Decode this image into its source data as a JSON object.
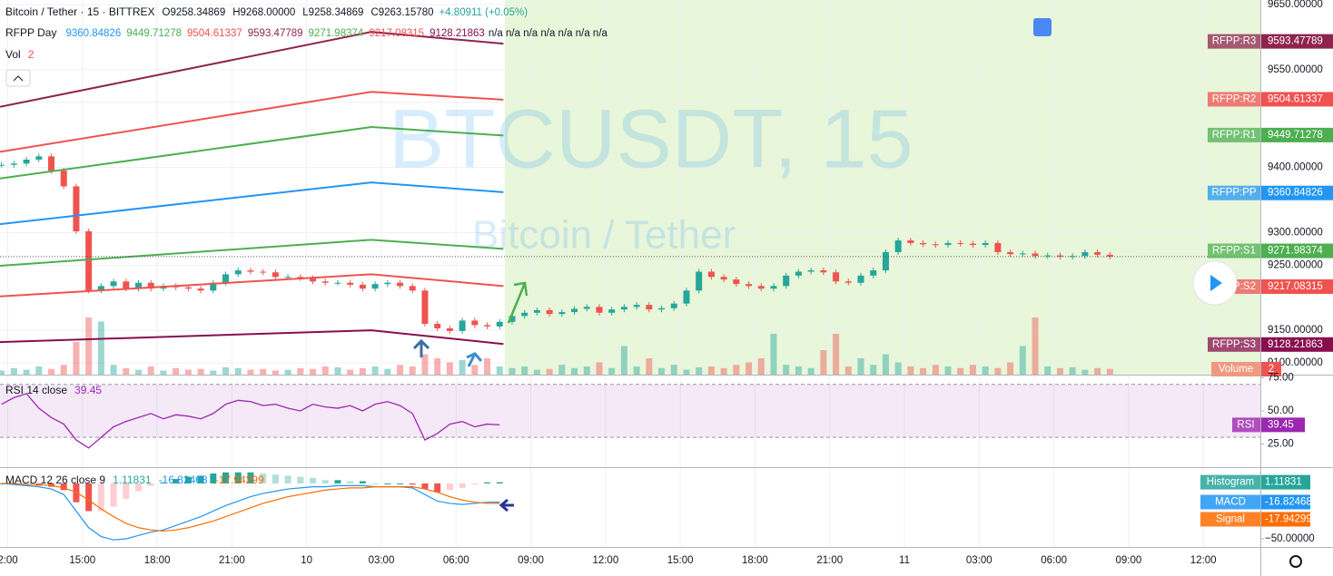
{
  "chart_data": [
    {
      "type": "candlestick",
      "title": "Bitcoin / Tether · 15 · BITTREX",
      "ohlc": [
        "O9258.34869",
        "H9268.00000",
        "L9258.34869",
        "C9263.15780"
      ],
      "change": "+4.80911 (+0.05%)",
      "indicator_name": "RFPP Day",
      "na_text": "n/a n/a n/a n/a n/a n/a n/a",
      "volume_title": "Vol",
      "volume_axis_label": "Volume",
      "volume_value": 2,
      "watermark_symbol": "BTCUSDT, 15",
      "watermark_name": "Bitcoin / Tether",
      "up_color": "#26a69a",
      "down_color": "#ef5350",
      "xlim": [
        -0.31,
        50.29
      ],
      "xticks": [
        {
          "value": 0,
          "label": "2:00"
        },
        {
          "value": 3,
          "label": "15:00"
        },
        {
          "value": 6,
          "label": "18:00"
        },
        {
          "value": 9,
          "label": "21:00"
        },
        {
          "value": 12,
          "label": "10"
        },
        {
          "value": 15,
          "label": "03:00"
        },
        {
          "value": 18,
          "label": "06:00"
        },
        {
          "value": 21,
          "label": "09:00"
        },
        {
          "value": 24,
          "label": "12:00"
        },
        {
          "value": 27,
          "label": "15:00"
        },
        {
          "value": 30,
          "label": "18:00"
        },
        {
          "value": 33,
          "label": "21:00"
        },
        {
          "value": 36,
          "label": "11"
        },
        {
          "value": 39,
          "label": "03:00"
        },
        {
          "value": 42,
          "label": "06:00"
        },
        {
          "value": 45,
          "label": "09:00"
        },
        {
          "value": 48,
          "label": "12:00"
        }
      ],
      "ylim": [
        9082,
        9657
      ],
      "yticks": [
        {
          "value": 9650,
          "label": "9650.00000"
        },
        {
          "value": 9550,
          "label": "9550.00000"
        },
        {
          "value": 9500,
          "label": "9500.00000"
        },
        {
          "value": 9400,
          "label": "9400.00000"
        },
        {
          "value": 9300,
          "label": "9300.00000"
        },
        {
          "value": 9250,
          "label": "9250.00000"
        },
        {
          "value": 9150,
          "label": "9150.00000"
        },
        {
          "value": 9100,
          "label": "9100.00000"
        }
      ],
      "x": [
        -0.25,
        0.25,
        0.75,
        1.25,
        1.75,
        2.25,
        2.75,
        3.25,
        3.75,
        4.25,
        4.75,
        5.25,
        5.75,
        6.25,
        6.75,
        7.25,
        7.75,
        8.25,
        8.75,
        9.25,
        9.75,
        10.25,
        10.75,
        11.25,
        11.75,
        12.25,
        12.75,
        13.25,
        13.75,
        14.25,
        14.75,
        15.25,
        15.75,
        16.25,
        16.75,
        17.25,
        17.75,
        18.25,
        18.75,
        19.25,
        19.75,
        20.25,
        20.75,
        21.25,
        21.75,
        22.25,
        22.75,
        23.25,
        23.75,
        24.25,
        24.75,
        25.25,
        25.75,
        26.25,
        26.75,
        27.25,
        27.75,
        28.25,
        28.75,
        29.25,
        29.75,
        30.25,
        30.75,
        31.25,
        31.75,
        32.25,
        32.75,
        33.25,
        33.75,
        34.25,
        34.75,
        35.25,
        35.75,
        36.25,
        36.75,
        37.25,
        37.75,
        38.25,
        38.75,
        39.25,
        39.75,
        40.25,
        40.75,
        41.25,
        41.75,
        42.25,
        42.75,
        43.25,
        43.75,
        44.25
      ],
      "close": [
        9404,
        9406,
        9412,
        9417,
        9395,
        9371,
        9302,
        9211,
        9218,
        9225,
        9214,
        9223,
        9214,
        9218,
        9216,
        9214,
        9211,
        9223,
        9236,
        9242,
        9240,
        9239,
        9232,
        9232,
        9230,
        9225,
        9223,
        9223,
        9220,
        9214,
        9221,
        9223,
        9218,
        9211,
        9160,
        9153,
        9149,
        9165,
        9158,
        9156,
        9163,
        9172,
        9177,
        9181,
        9175,
        9178,
        9183,
        9186,
        9177,
        9182,
        9186,
        9189,
        9182,
        9184,
        9191,
        9211,
        9240,
        9232,
        9228,
        9221,
        9218,
        9214,
        9218,
        9234,
        9240,
        9242,
        9239,
        9225,
        9223,
        9234,
        9242,
        9270,
        9288,
        9284,
        9282,
        9281,
        9284,
        9283,
        9281,
        9284,
        9270,
        9267,
        9268,
        9264,
        9265,
        9263,
        9264,
        9270,
        9266,
        9263.1578
      ],
      "volume": [
        5,
        8,
        6,
        10,
        7,
        12,
        40,
        70,
        65,
        12,
        8,
        6,
        10,
        5,
        8,
        6,
        7,
        5,
        9,
        8,
        6,
        7,
        5,
        6,
        8,
        7,
        10,
        9,
        6,
        8,
        10,
        7,
        12,
        10,
        25,
        20,
        15,
        18,
        12,
        20,
        10,
        8,
        10,
        6,
        7,
        12,
        8,
        10,
        15,
        8,
        35,
        10,
        20,
        8,
        12,
        6,
        9,
        10,
        8,
        12,
        15,
        20,
        50,
        12,
        10,
        8,
        30,
        50,
        10,
        20,
        12,
        25,
        15,
        10,
        8,
        12,
        10,
        8,
        12,
        10,
        8,
        15,
        35,
        70,
        10,
        8,
        9,
        6,
        8,
        7
      ],
      "volume_lim": [
        0,
        100
      ],
      "pivot_curve_x": [
        -0.31,
        14.6,
        19.9
      ],
      "pivots": [
        {
          "name": "RFPP:R3",
          "value": 9593.47789,
          "color": "#8e244d",
          "curve": [
            9493,
            9608,
            9590
          ]
        },
        {
          "name": "RFPP:R2",
          "value": 9504.61337,
          "color": "#f0524f",
          "curve": [
            9424,
            9516,
            9504
          ]
        },
        {
          "name": "RFPP:R1",
          "value": 9449.71278,
          "color": "#4caf50",
          "curve": [
            9383,
            9462,
            9449
          ]
        },
        {
          "name": "RFPP:PP",
          "value": 9360.84826,
          "color": "#2196f3",
          "curve": [
            9313,
            9377,
            9362
          ]
        },
        {
          "name": "RFPP:S1",
          "value": 9271.98374,
          "color": "#4caf50",
          "curve": [
            9249,
            9289,
            9275
          ]
        },
        {
          "name": "RFPP:S2",
          "value": 9217.08315,
          "color": "#f0524f",
          "curve": [
            9202,
            9236,
            9218
          ]
        },
        {
          "name": "RFPP:S3",
          "value": 9128.21863,
          "color": "#880e4f",
          "curve": [
            9132,
            9150,
            9129
          ]
        }
      ]
    },
    {
      "type": "line",
      "title": "RSI 14 close",
      "name": "RSI",
      "color": "#9c27b0",
      "band": [
        30,
        70
      ],
      "ylim": [
        7.5,
        76.7
      ],
      "yticks": [
        {
          "value": 75,
          "label": "75.00"
        },
        {
          "value": 50,
          "label": "50.00"
        },
        {
          "value": 25,
          "label": "25.00"
        }
      ],
      "x": [
        -0.25,
        0.25,
        0.75,
        1.25,
        1.75,
        2.25,
        2.75,
        3.25,
        3.75,
        4.25,
        4.75,
        5.25,
        5.75,
        6.25,
        6.75,
        7.25,
        7.75,
        8.25,
        8.75,
        9.25,
        9.75,
        10.25,
        10.75,
        11.25,
        11.75,
        12.25,
        12.75,
        13.25,
        13.75,
        14.25,
        14.75,
        15.25,
        15.75,
        16.25,
        16.75,
        17.25,
        17.75,
        18.25,
        18.75,
        19.25,
        19.75
      ],
      "values": [
        55,
        60,
        63,
        52,
        45,
        40,
        28,
        22,
        30,
        38,
        42,
        45,
        48,
        44,
        47,
        46,
        44,
        48,
        55,
        58,
        57,
        54,
        55,
        52,
        50,
        55,
        53,
        52,
        54,
        50,
        55,
        57,
        54,
        48,
        28,
        33,
        40,
        42,
        38,
        40,
        39.45
      ]
    },
    {
      "type": "macd",
      "title": "MACD 12 26 close 9",
      "ylim": [
        -57.4,
        13.9
      ],
      "yticks": [
        {
          "value": -50,
          "label": "−50.00000"
        }
      ],
      "x": [
        -0.25,
        0.25,
        0.75,
        1.25,
        1.75,
        2.25,
        2.75,
        3.25,
        3.75,
        4.25,
        4.75,
        5.25,
        5.75,
        6.25,
        6.75,
        7.25,
        7.75,
        8.25,
        8.75,
        9.25,
        9.75,
        10.25,
        10.75,
        11.25,
        11.75,
        12.25,
        12.75,
        13.25,
        13.75,
        14.25,
        14.75,
        15.25,
        15.75,
        16.25,
        16.75,
        17.25,
        17.75,
        18.25,
        18.75,
        19.25,
        19.75
      ],
      "series": [
        {
          "name": "Histogram",
          "color": "#26a69a",
          "colors": [
            "#26a69a",
            "#b2dfdb",
            "#ffcdd2",
            "#ef5350"
          ],
          "values": [
            0,
            -1,
            -1,
            -2,
            -3,
            -6,
            -17,
            -25,
            -25,
            -21,
            -14,
            -7,
            -2,
            1,
            4,
            6,
            7,
            9,
            10,
            10,
            10,
            9,
            8,
            7,
            6,
            5,
            3,
            3,
            2,
            2,
            0,
            0,
            0,
            -1,
            -5,
            -8,
            -6,
            -4,
            -1,
            1,
            1.11831
          ]
        },
        {
          "name": "MACD",
          "color": "#2196f3",
          "values": [
            0,
            -1,
            -2,
            -3,
            -5,
            -10,
            -25,
            -40,
            -48,
            -51,
            -50,
            -47,
            -44,
            -42,
            -38,
            -34,
            -30,
            -25,
            -20,
            -16,
            -12,
            -9,
            -7,
            -5,
            -4,
            -3,
            -3,
            -2,
            -2,
            -2,
            -3,
            -3,
            -3,
            -4,
            -10,
            -16,
            -18,
            -19,
            -18,
            -17,
            -16.82468
          ]
        },
        {
          "name": "Signal",
          "color": "#ff6d00",
          "values": [
            0,
            0,
            -1,
            -1,
            -2,
            -4,
            -8,
            -15,
            -23,
            -30,
            -36,
            -40,
            -42,
            -43,
            -42,
            -40,
            -37,
            -34,
            -30,
            -26,
            -22,
            -18,
            -15,
            -12,
            -10,
            -8,
            -6,
            -5,
            -4,
            -4,
            -3,
            -3,
            -3,
            -3,
            -5,
            -8,
            -12,
            -15,
            -17,
            -18,
            -17.94299
          ]
        }
      ]
    }
  ]
}
